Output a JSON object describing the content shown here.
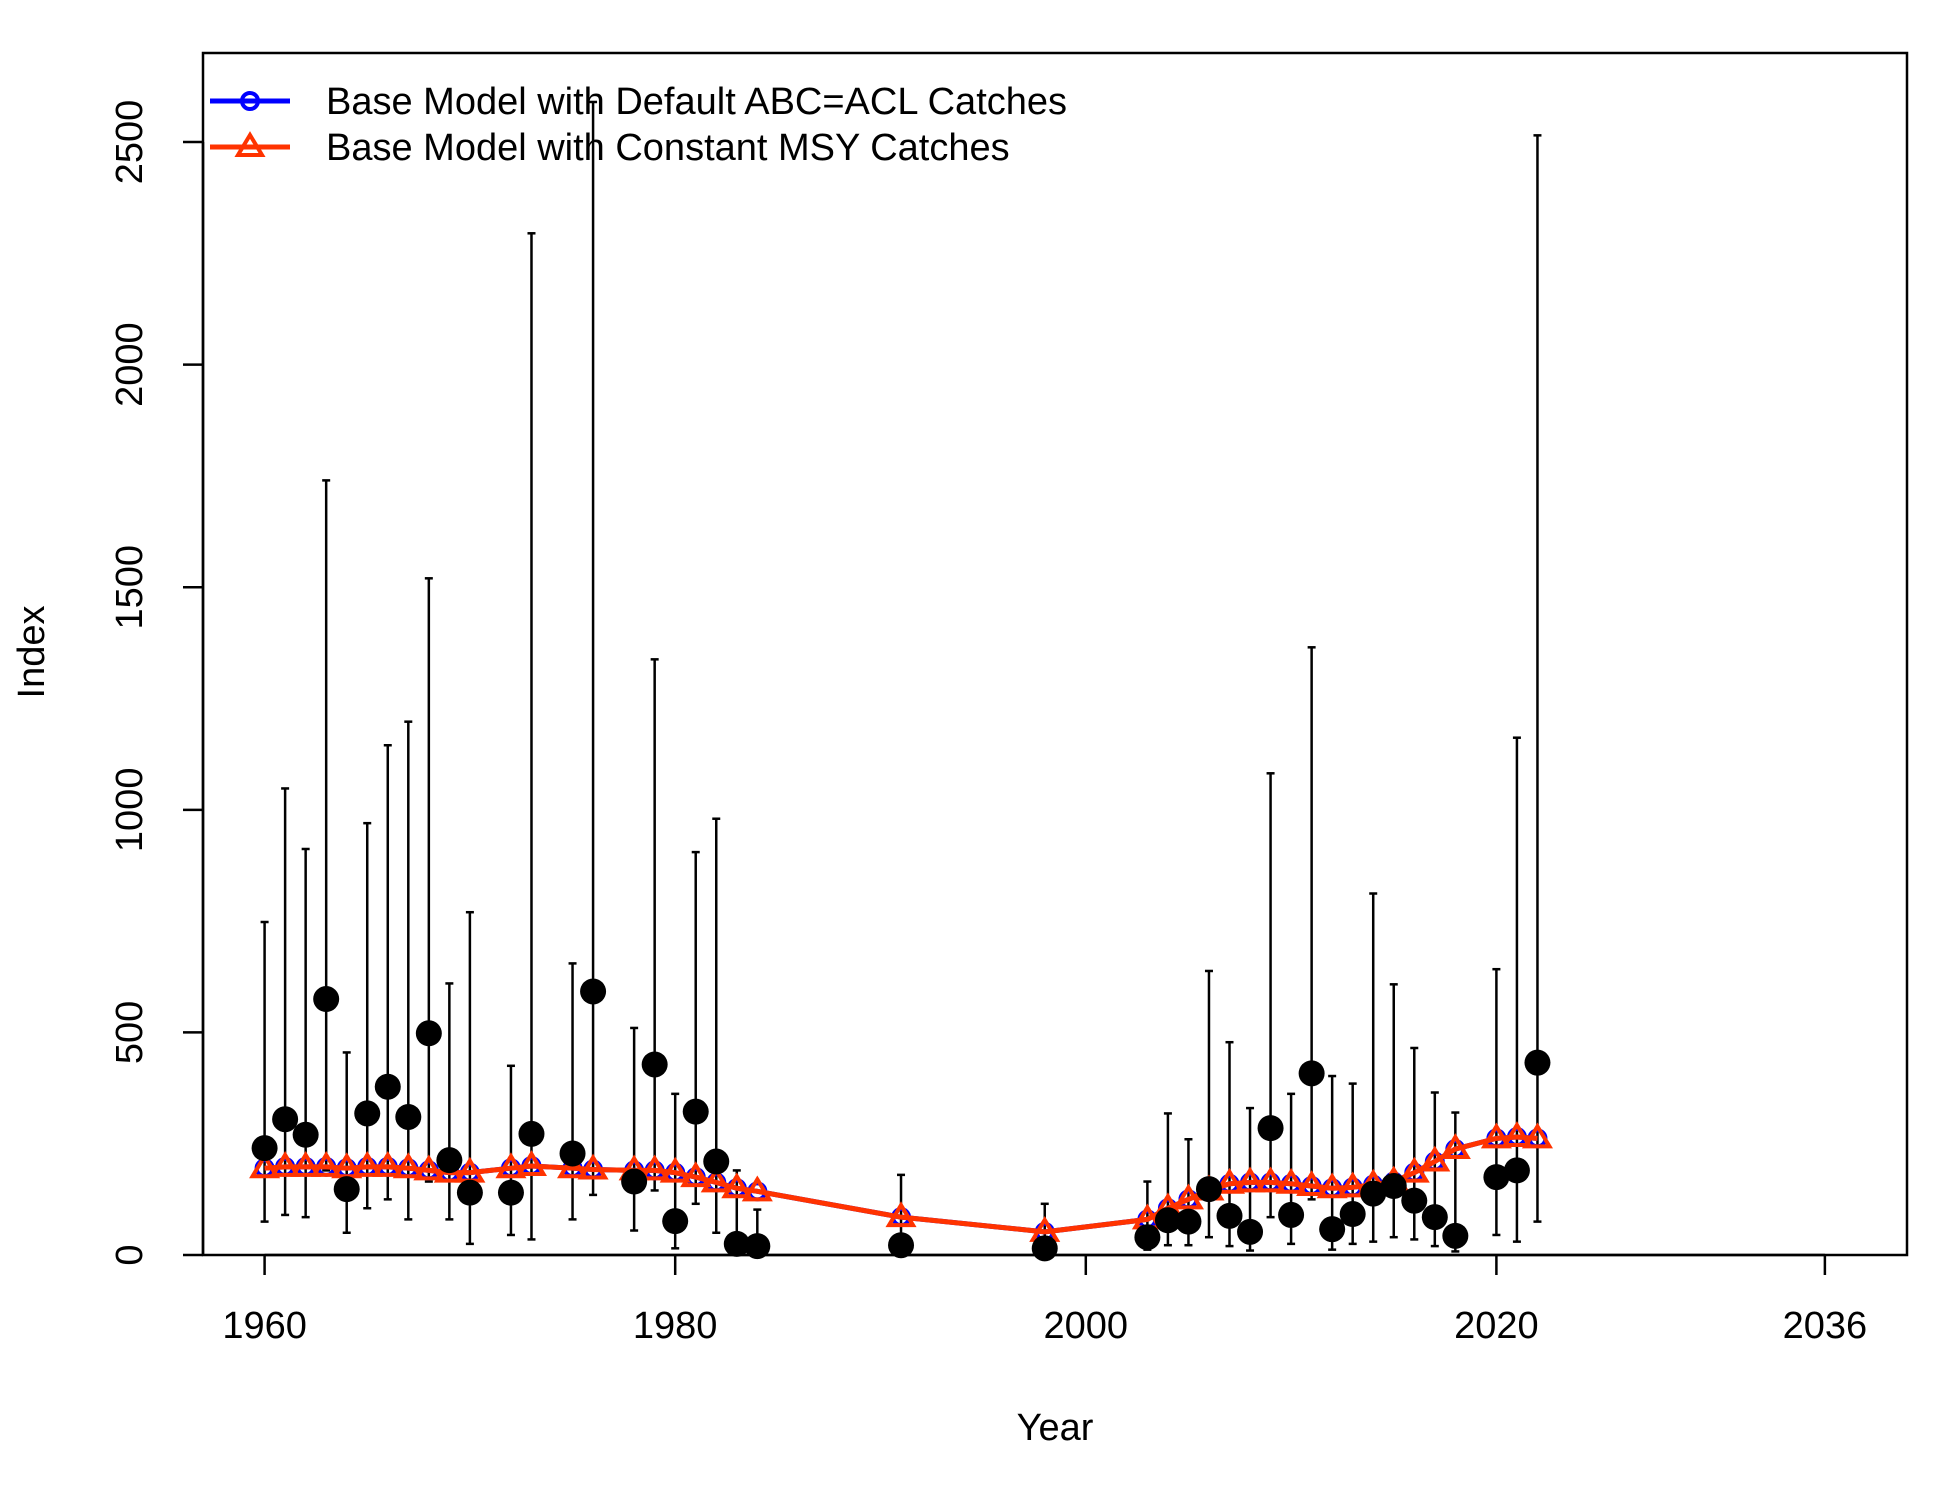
{
  "chart_data": {
    "type": "line",
    "xlabel": "Year",
    "ylabel": "Index",
    "xlim": [
      1957,
      2040
    ],
    "ylim": [
      0,
      2700
    ],
    "x_ticks": [
      1960,
      1980,
      2000,
      2020,
      2036
    ],
    "y_ticks": [
      0,
      500,
      1000,
      1500,
      2000,
      2500
    ],
    "legend_position": "top-left",
    "legend": [
      {
        "label": "Base Model with Default ABC=ACL Catches",
        "color": "#0000ff",
        "marker": "circle"
      },
      {
        "label": "Base Model with Constant MSY Catches",
        "color": "#ff3300",
        "marker": "triangle"
      }
    ],
    "series": [
      {
        "name": "Base Model with Default ABC=ACL Catches",
        "color": "#0000ff",
        "marker": "circle",
        "x": [
          1960,
          1961,
          1962,
          1963,
          1964,
          1965,
          1966,
          1967,
          1968,
          1969,
          1970,
          1972,
          1973,
          1975,
          1976,
          1978,
          1979,
          1980,
          1981,
          1982,
          1983,
          1984,
          1991,
          1998,
          2003,
          2004,
          2005,
          2006,
          2007,
          2008,
          2009,
          2010,
          2011,
          2012,
          2013,
          2014,
          2015,
          2016,
          2017,
          2018,
          2020,
          2021,
          2022
        ],
        "y": [
          195,
          198,
          198,
          198,
          195,
          198,
          198,
          195,
          190,
          185,
          185,
          195,
          200,
          195,
          192,
          190,
          190,
          185,
          175,
          163,
          150,
          143,
          85,
          52,
          80,
          105,
          125,
          145,
          160,
          163,
          163,
          160,
          155,
          150,
          152,
          158,
          165,
          185,
          210,
          238,
          262,
          265,
          262
        ]
      },
      {
        "name": "Base Model with Constant MSY Catches",
        "color": "#ff3300",
        "marker": "triangle",
        "x": [
          1960,
          1961,
          1962,
          1963,
          1964,
          1965,
          1966,
          1967,
          1968,
          1969,
          1970,
          1972,
          1973,
          1975,
          1976,
          1978,
          1979,
          1980,
          1981,
          1982,
          1983,
          1984,
          1991,
          1998,
          2003,
          2004,
          2005,
          2006,
          2007,
          2008,
          2009,
          2010,
          2011,
          2012,
          2013,
          2014,
          2015,
          2016,
          2017,
          2018,
          2020,
          2021,
          2022
        ],
        "y": [
          195,
          198,
          198,
          198,
          195,
          198,
          198,
          195,
          190,
          185,
          185,
          195,
          200,
          195,
          192,
          190,
          190,
          185,
          175,
          163,
          150,
          143,
          85,
          52,
          80,
          105,
          125,
          145,
          160,
          163,
          163,
          160,
          155,
          150,
          152,
          158,
          165,
          185,
          210,
          238,
          262,
          265,
          262
        ]
      }
    ],
    "observed": {
      "x": [
        1960,
        1961,
        1962,
        1963,
        1964,
        1965,
        1966,
        1967,
        1968,
        1969,
        1970,
        1972,
        1973,
        1975,
        1976,
        1978,
        1979,
        1980,
        1981,
        1982,
        1983,
        1984,
        1991,
        1998,
        2003,
        2004,
        2005,
        2006,
        2007,
        2008,
        2009,
        2010,
        2011,
        2012,
        2013,
        2014,
        2015,
        2016,
        2017,
        2018,
        2020,
        2021,
        2022
      ],
      "y": [
        240,
        305,
        270,
        575,
        148,
        318,
        378,
        310,
        498,
        213,
        140,
        140,
        272,
        228,
        592,
        165,
        428,
        76,
        322,
        210,
        25,
        20,
        22,
        15,
        40,
        78,
        75,
        148,
        88,
        52,
        285,
        90,
        408,
        58,
        92,
        138,
        155,
        122,
        85,
        43,
        175,
        190,
        432
      ],
      "lower": [
        75,
        90,
        85,
        190,
        50,
        105,
        125,
        80,
        165,
        80,
        25,
        45,
        35,
        80,
        135,
        55,
        145,
        15,
        115,
        50,
        5,
        5,
        5,
        3,
        12,
        22,
        22,
        40,
        20,
        10,
        85,
        25,
        125,
        12,
        25,
        30,
        40,
        35,
        20,
        8,
        45,
        30,
        75
      ],
      "upper": [
        748,
        1048,
        912,
        1740,
        455,
        970,
        1145,
        1198,
        1520,
        610,
        770,
        425,
        2295,
        655,
        2590,
        510,
        1338,
        362,
        905,
        980,
        190,
        102,
        180,
        115,
        165,
        318,
        260,
        638,
        478,
        330,
        1082,
        362,
        1365,
        402,
        385,
        812,
        608,
        465,
        365,
        320,
        642,
        1162,
        2515
      ]
    }
  }
}
